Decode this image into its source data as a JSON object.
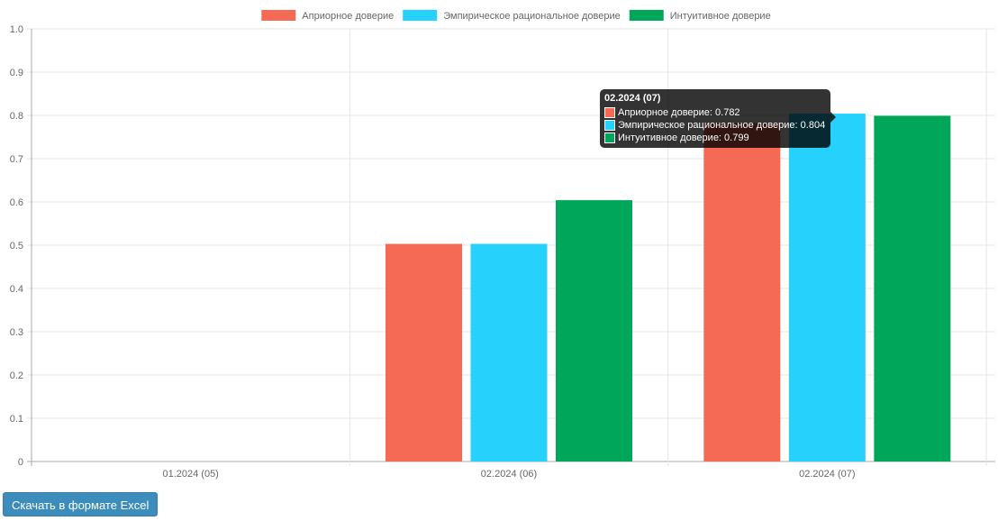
{
  "chart_data": {
    "type": "bar",
    "categories": [
      "01.2024 (05)",
      "02.2024 (06)",
      "02.2024 (07)"
    ],
    "series": [
      {
        "name": "Априорное доверие",
        "color": "#f46a55",
        "values": [
          0,
          0.503,
          0.782
        ]
      },
      {
        "name": "Эмпирическое рациональное доверие",
        "color": "#26d1fb",
        "values": [
          0,
          0.503,
          0.804
        ]
      },
      {
        "name": "Интуитивное доверие",
        "color": "#00a65a",
        "values": [
          0,
          0.604,
          0.799
        ]
      }
    ],
    "ylim": [
      0,
      1.0
    ],
    "yticks": [
      "0",
      "0.1",
      "0.2",
      "0.3",
      "0.4",
      "0.5",
      "0.6",
      "0.7",
      "0.8",
      "0.9",
      "1.0"
    ],
    "grid": true,
    "legend": "top"
  },
  "tooltip": {
    "title": "02.2024 (07)",
    "lines": [
      "Априорное доверие: 0.782",
      "Эмпирическое рациональное доверие: 0.804",
      "Интуитивное доверие: 0.799"
    ]
  },
  "button": {
    "label": "Скачать в формате Excel"
  }
}
